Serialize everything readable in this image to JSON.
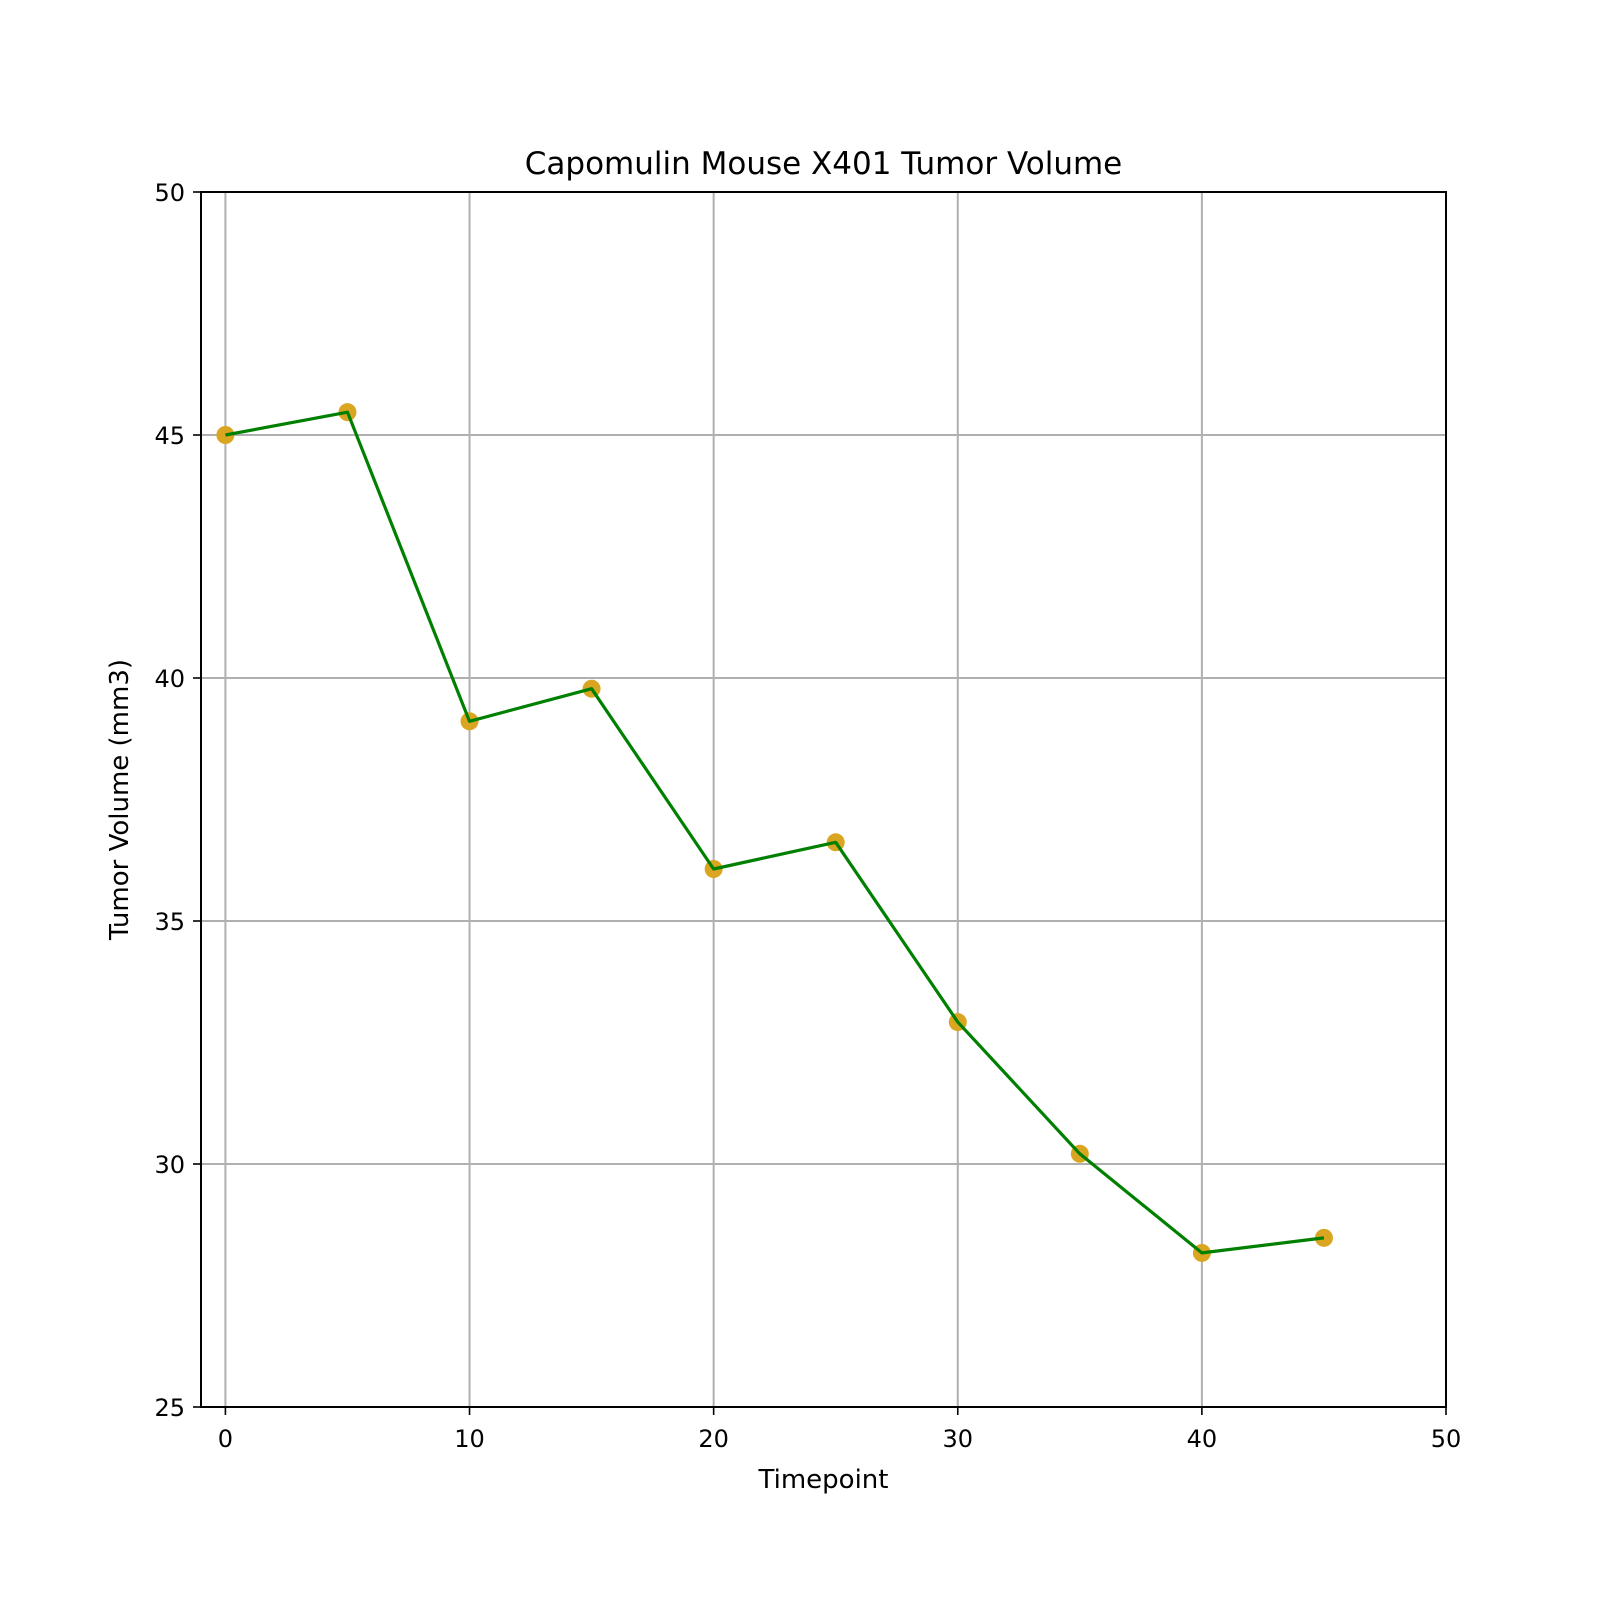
{
  "chart_data": {
    "type": "line",
    "title": "Capomulin Mouse X401 Tumor Volume",
    "xlabel": "Timepoint",
    "ylabel": "Tumor Volume (mm3)",
    "xlim": [
      -1,
      50
    ],
    "ylim": [
      25,
      50
    ],
    "xticks": [
      0,
      10,
      20,
      30,
      40,
      50
    ],
    "yticks": [
      25,
      30,
      35,
      40,
      45,
      50
    ],
    "grid": true,
    "line_color": "#008000",
    "marker_color": "#DAA520",
    "series": [
      {
        "x": [
          0,
          5,
          10,
          15,
          20,
          25,
          30,
          35,
          40,
          45
        ],
        "y": [
          45.0,
          45.47,
          39.11,
          39.78,
          36.07,
          36.62,
          32.92,
          30.21,
          28.17,
          28.48
        ]
      }
    ]
  }
}
